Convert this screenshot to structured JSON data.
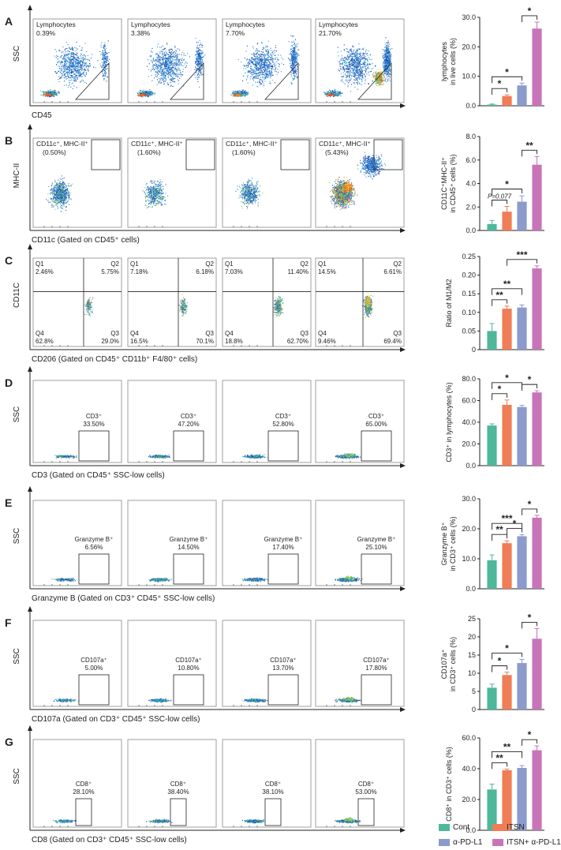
{
  "colors": {
    "groups": [
      "#4fb79a",
      "#ef7d55",
      "#8a9bcc",
      "#c874b9"
    ],
    "axis": "#222222",
    "gate": "#333333"
  },
  "groups": [
    "Cont",
    "ITSN",
    "α-PD-L1",
    "ITSN+ α-PD-L1"
  ],
  "panels": [
    {
      "letter": "A",
      "y_axis_label": "SSC",
      "x_axis_label": "CD45",
      "plot_type": "density",
      "gate_type": "triangle",
      "gate_label": "Lymphocytes",
      "values": [
        "0.39%",
        "3.38%",
        "7.70%",
        "21.70%"
      ]
    },
    {
      "letter": "B",
      "y_axis_label": "MHC-II",
      "x_axis_label": "CD11c (Gated on CD45⁺ cells)",
      "plot_type": "density",
      "gate_type": "corner",
      "gate_label": "CD11c⁺, MHC-II⁺",
      "values": [
        "(0.50%)",
        "(1.60%)",
        "(1.60%)",
        "(5.43%)"
      ]
    },
    {
      "letter": "C",
      "y_axis_label": "CD11C",
      "x_axis_label": "CD206 (Gated on CD45⁺ CD11b⁺ F4/80⁺ cells)",
      "plot_type": "quadrant",
      "quadrant_labels": [
        "Q1",
        "Q2",
        "Q3",
        "Q4"
      ],
      "quadrants": [
        {
          "q1": "2.46%",
          "q2": "5.75%",
          "q3": "29.0%",
          "q4": "62.8%"
        },
        {
          "q1": "7.18%",
          "q2": "6.18%",
          "q3": "70.1%",
          "q4": "16.5%"
        },
        {
          "q1": "7.03%",
          "q2": "11.40%",
          "q3": "62.70%",
          "q4": "18.8%"
        },
        {
          "q1": "14.5%",
          "q2": "6.61%",
          "q3": "69.4%",
          "q4": "9.46%"
        }
      ]
    },
    {
      "letter": "D",
      "y_axis_label": "SSC",
      "x_axis_label": "CD3 (Gated on CD45⁺ SSC-low cells)",
      "plot_type": "low",
      "gate_type": "box",
      "gate_label": "CD3⁺",
      "values": [
        "33.50%",
        "47.20%",
        "52.80%",
        "65.00%"
      ]
    },
    {
      "letter": "E",
      "y_axis_label": "SSC",
      "x_axis_label": "Granzyme B (Gated on CD3⁺ CD45⁺ SSC-low cells)",
      "plot_type": "low",
      "gate_type": "box",
      "gate_label": "Granzyme B⁺",
      "values": [
        "6.56%",
        "14.50%",
        "17.40%",
        "25.10%"
      ]
    },
    {
      "letter": "F",
      "y_axis_label": "SSC",
      "x_axis_label": "CD107a (Gated on CD3⁺ CD45⁺ SSC-low cells)",
      "plot_type": "low",
      "gate_type": "box",
      "gate_label": "CD107a⁺",
      "values": [
        "5.00%",
        "10.80%",
        "13.70%",
        "17.80%"
      ]
    },
    {
      "letter": "G",
      "y_axis_label": "SSC",
      "x_axis_label": "CD8 (Gated on CD3⁺ CD45⁺ SSC-low cells)",
      "plot_type": "low",
      "gate_type": "narrow",
      "gate_label": "CD8⁺",
      "values": [
        "28.10%",
        "38.40%",
        "38.10%",
        "53.00%"
      ]
    }
  ],
  "chart_data": [
    {
      "type": "bar",
      "panel": "A",
      "ylabel": "lymphocytes in live cells (%)",
      "ylim": [
        0,
        30
      ],
      "ticks": [
        "0.0",
        "10.0",
        "20.0",
        "30.0"
      ],
      "categories": [
        "Cont",
        "ITSN",
        "α-PD-L1",
        "ITSN+ α-PD-L1"
      ],
      "values": [
        0.4,
        3.3,
        6.9,
        26.2
      ],
      "errors": [
        0.2,
        0.4,
        0.8,
        2.2
      ],
      "annotations": [
        {
          "from": 0,
          "to": 1,
          "label": "*"
        },
        {
          "from": 0,
          "to": 2,
          "label": "*"
        },
        {
          "from": 2,
          "to": 3,
          "label": "*"
        }
      ]
    },
    {
      "type": "bar",
      "panel": "B",
      "ylabel": "CD11C⁺MHC-II⁺ in CD45⁺ cells (%)",
      "ylim": [
        0,
        8
      ],
      "ticks": [
        "0.0",
        "2.0",
        "4.0",
        "6.0",
        "8.0"
      ],
      "categories": [
        "Cont",
        "ITSN",
        "α-PD-L1",
        "ITSN+ α-PD-L1"
      ],
      "values": [
        0.55,
        1.6,
        2.45,
        5.6
      ],
      "errors": [
        0.3,
        0.45,
        0.5,
        0.7
      ],
      "annotations": [
        {
          "from": 0,
          "to": 1,
          "label": "P=0.077"
        },
        {
          "from": 0,
          "to": 2,
          "label": "*"
        },
        {
          "from": 2,
          "to": 3,
          "label": "**"
        }
      ]
    },
    {
      "type": "bar",
      "panel": "C",
      "ylabel": "Ratio of M1/M2",
      "ylim": [
        0,
        0.25
      ],
      "ticks": [
        "0",
        "0.05",
        "0.10",
        "0.15",
        "0.20",
        "0.25"
      ],
      "categories": [
        "Cont",
        "ITSN",
        "α-PD-L1",
        "ITSN+ α-PD-L1"
      ],
      "values": [
        0.05,
        0.11,
        0.113,
        0.218
      ],
      "errors": [
        0.02,
        0.007,
        0.007,
        0.007
      ],
      "annotations": [
        {
          "from": 0,
          "to": 1,
          "label": "**"
        },
        {
          "from": 0,
          "to": 2,
          "label": "**"
        },
        {
          "from": 1,
          "to": 3,
          "label": "***"
        }
      ]
    },
    {
      "type": "bar",
      "panel": "D",
      "ylabel": "CD3⁺ in lymphocytes (%)",
      "ylim": [
        0,
        80
      ],
      "ticks": [
        "0.0",
        "20.0",
        "40.0",
        "60.0",
        "80.0"
      ],
      "categories": [
        "Cont",
        "ITSN",
        "α-PD-L1",
        "ITSN+ α-PD-L1"
      ],
      "values": [
        37,
        56,
        54,
        67.5
      ],
      "errors": [
        1.5,
        4.5,
        1.5,
        1.5
      ],
      "annotations": [
        {
          "from": 0,
          "to": 1,
          "label": "*"
        },
        {
          "from": 0,
          "to": 2,
          "label": "*"
        },
        {
          "from": 2,
          "to": 3,
          "label": "*"
        }
      ]
    },
    {
      "type": "bar",
      "panel": "E",
      "ylabel": "Granzyme B⁺ in CD3⁺ cells (%)",
      "ylim": [
        0,
        30
      ],
      "ticks": [
        "0.0",
        "10.0",
        "20.0",
        "30.0"
      ],
      "categories": [
        "Cont",
        "ITSN",
        "α-PD-L1",
        "ITSN+ α-PD-L1"
      ],
      "values": [
        9.5,
        15.2,
        17.5,
        23.7
      ],
      "errors": [
        1.8,
        0.8,
        0.5,
        0.8
      ],
      "annotations": [
        {
          "from": 0,
          "to": 1,
          "label": "**"
        },
        {
          "from": 0,
          "to": 2,
          "label": "***"
        },
        {
          "from": 1,
          "to": 2,
          "label": "*"
        },
        {
          "from": 2,
          "to": 3,
          "label": "*"
        }
      ]
    },
    {
      "type": "bar",
      "panel": "F",
      "ylabel": "CD107a⁺ in CD3⁺ cells (%)",
      "ylim": [
        0,
        25
      ],
      "ticks": [
        "0",
        "5",
        "10",
        "15",
        "20",
        "25"
      ],
      "categories": [
        "Cont",
        "ITSN",
        "α-PD-L1",
        "ITSN+ α-PD-L1"
      ],
      "values": [
        6.0,
        9.5,
        12.8,
        19.5
      ],
      "errors": [
        1.0,
        0.8,
        1.0,
        2.8
      ],
      "annotations": [
        {
          "from": 0,
          "to": 1,
          "label": "*"
        },
        {
          "from": 0,
          "to": 2,
          "label": "*"
        },
        {
          "from": 2,
          "to": 3,
          "label": "*"
        }
      ]
    },
    {
      "type": "bar",
      "panel": "G",
      "ylabel": "CD8⁺ in CD3⁺ cells (%)",
      "ylim": [
        0,
        60
      ],
      "ticks": [
        "0.0",
        "20.0",
        "40.0",
        "60.0"
      ],
      "categories": [
        "Cont",
        "ITSN",
        "α-PD-L1",
        "ITSN+ α-PD-L1"
      ],
      "values": [
        26.5,
        39,
        40.5,
        52
      ],
      "errors": [
        3.5,
        0.8,
        1.5,
        2.8
      ],
      "annotations": [
        {
          "from": 0,
          "to": 1,
          "label": "**"
        },
        {
          "from": 0,
          "to": 2,
          "label": "**"
        },
        {
          "from": 2,
          "to": 3,
          "label": "*"
        }
      ]
    }
  ]
}
